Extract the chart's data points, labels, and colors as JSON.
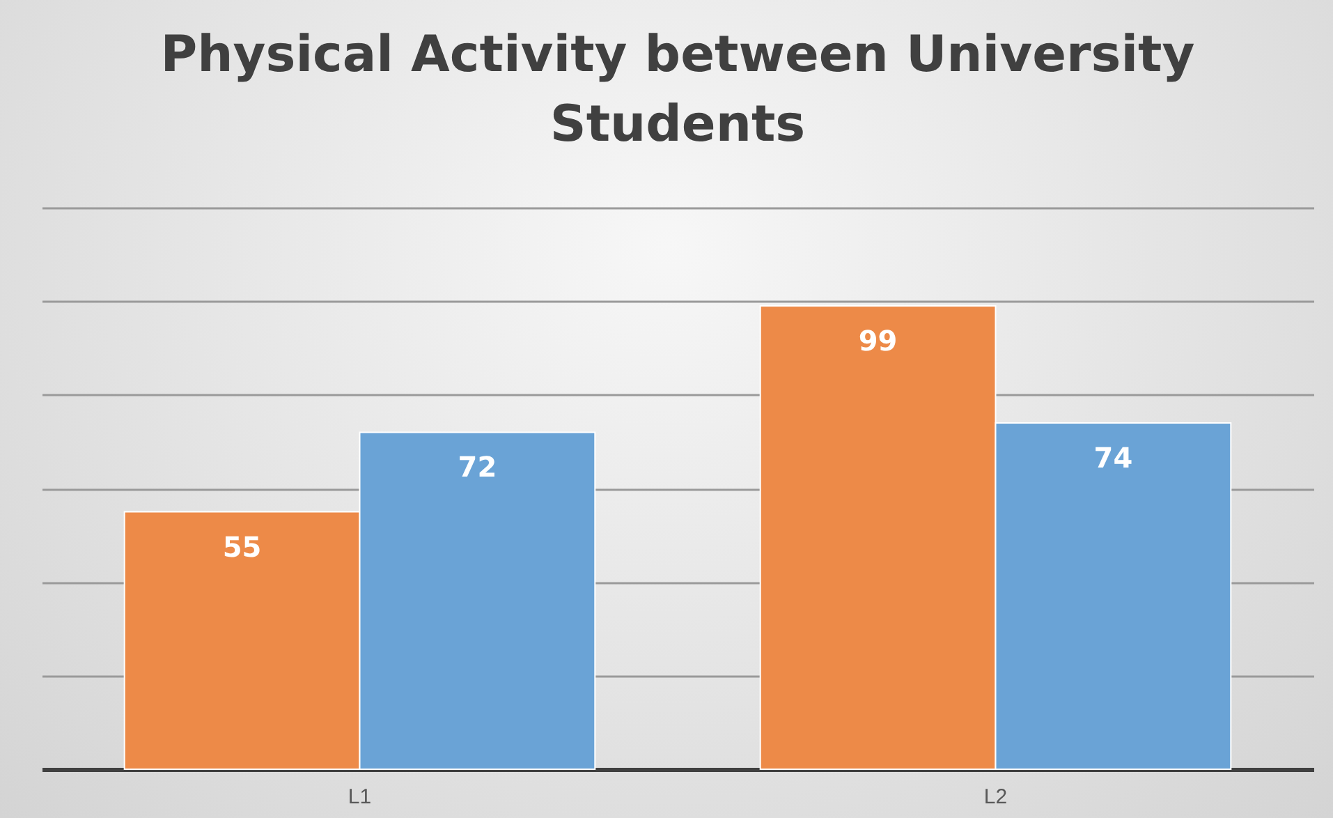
{
  "chart_data": {
    "type": "bar",
    "title": "Physical Activity between University Students",
    "categories": [
      "L1",
      "L2"
    ],
    "series": [
      {
        "color": "#ed8a48",
        "values": [
          55,
          99
        ]
      },
      {
        "color": "#6aa3d6",
        "values": [
          72,
          74
        ]
      }
    ],
    "ylim": [
      0,
      120
    ],
    "yticks": [
      {
        "value": 0,
        "label": null
      },
      {
        "value": 20,
        "label": null
      },
      {
        "value": 40,
        "label": null
      },
      {
        "value": 60,
        "label": null
      },
      {
        "value": 80,
        "label": null
      },
      {
        "value": 100,
        "label": null
      },
      {
        "value": 120,
        "label": null
      }
    ],
    "tick_labels": "x",
    "grid": "y",
    "data_labels": true,
    "legend": false
  }
}
